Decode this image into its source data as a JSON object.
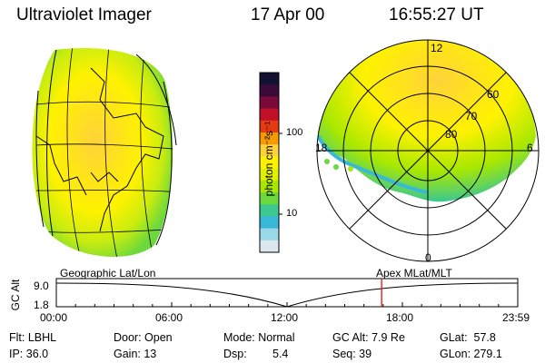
{
  "header": {
    "title": "Ultraviolet Imager",
    "date": "17 Apr 00",
    "time": "16:55:27 UT"
  },
  "colorbar": {
    "unit_label": "photon cm⁻²s⁻¹",
    "ticks": [
      "100",
      "10"
    ],
    "colors": [
      "#111133",
      "#3a0a3a",
      "#7a0a3a",
      "#c0102a",
      "#e83a10",
      "#f59a00",
      "#ffd23a",
      "#fff200",
      "#dff000",
      "#a8e800",
      "#6cd83c",
      "#3cc890",
      "#3ab8d8",
      "#9ad8e8",
      "#dde8ee"
    ]
  },
  "polar_plot": {
    "latitude_labels": [
      "60",
      "70",
      "80"
    ],
    "mlt_labels": {
      "top": "12",
      "left": "18",
      "right": "6",
      "bottom": "0"
    }
  },
  "timeline": {
    "left_caption": "Geographic Lat/Lon",
    "right_caption": "Apex MLat/MLT",
    "axis_label": "GC Alt",
    "y_top": "9.0",
    "y_bottom": "1.8",
    "time_ticks": [
      "00:00",
      "06:00",
      "12:00",
      "18:00",
      "23:59"
    ],
    "marker_color": "#e02020",
    "marker_time_hours": 16.92
  },
  "info": {
    "filter": "Flt: LBHL",
    "ip": "IP: 36.0",
    "door": "Door: Open",
    "gain": "Gain: 13",
    "mode": "Mode: Normal",
    "dsp_label": "Dsp:",
    "dsp_value": "5.4",
    "gc_alt": "GC Alt: 7.9 Re",
    "seq": "Seq: 39",
    "glat": "GLat:  57.8",
    "glon": "GLon: 279.1"
  }
}
